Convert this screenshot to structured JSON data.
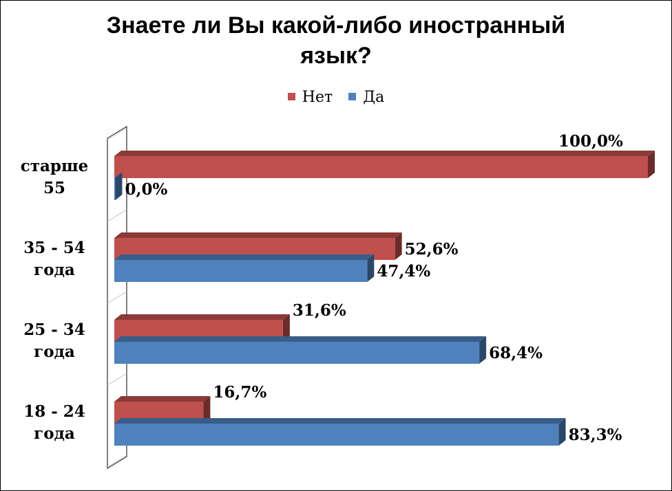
{
  "chart_data": {
    "type": "bar",
    "orientation": "horizontal",
    "title": "Знаете ли Вы какой-либо иностранный язык?",
    "title_lines": [
      "Знаете ли Вы какой-либо иностранный",
      "язык?"
    ],
    "categories": [
      "старше 55",
      "35 - 54 года",
      "25 - 34 года",
      "18 - 24 года"
    ],
    "category_lines": [
      [
        "старше",
        "55"
      ],
      [
        "35 - 54",
        "года"
      ],
      [
        "25 - 34",
        "года"
      ],
      [
        "18 - 24",
        "года"
      ]
    ],
    "series": [
      {
        "name": "Нет",
        "color": "#C0504D",
        "values": [
          100.0,
          52.6,
          31.6,
          16.7
        ],
        "labels": [
          "100,0%",
          "52,6%",
          "31,6%",
          "16,7%"
        ]
      },
      {
        "name": "Да",
        "color": "#4F81BD",
        "values": [
          0.0,
          47.4,
          68.4,
          83.3
        ],
        "labels": [
          "0,0%",
          "47,4%",
          "68,4%",
          "83,3%"
        ]
      }
    ],
    "legend_order": [
      "Нет",
      "Да"
    ],
    "xlim": [
      0,
      100
    ],
    "grid": false,
    "legend_position": "top"
  }
}
